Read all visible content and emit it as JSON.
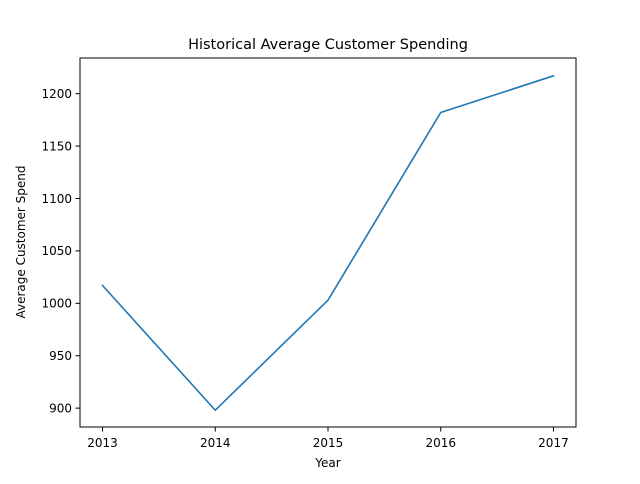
{
  "chart_data": {
    "type": "line",
    "title": "Historical Average Customer Spending",
    "xlabel": "Year",
    "ylabel": "Average Customer Spend",
    "x": [
      2013,
      2014,
      2015,
      2016,
      2017
    ],
    "series": [
      {
        "values": [
          1017,
          898,
          1003,
          1182,
          1217
        ],
        "color": "#1f77b4"
      }
    ],
    "xlim": [
      2012.8,
      2017.2
    ],
    "ylim": [
      882,
      1234
    ],
    "xticks": [
      2013,
      2014,
      2015,
      2016,
      2017
    ],
    "xtick_labels": [
      "2013",
      "2014",
      "2015",
      "2016",
      "2017"
    ],
    "yticks": [
      900,
      950,
      1000,
      1050,
      1100,
      1150,
      1200
    ],
    "ytick_labels": [
      "900",
      "950",
      "1000",
      "1050",
      "1100",
      "1150",
      "1200"
    ],
    "grid": false,
    "legend": "none"
  }
}
